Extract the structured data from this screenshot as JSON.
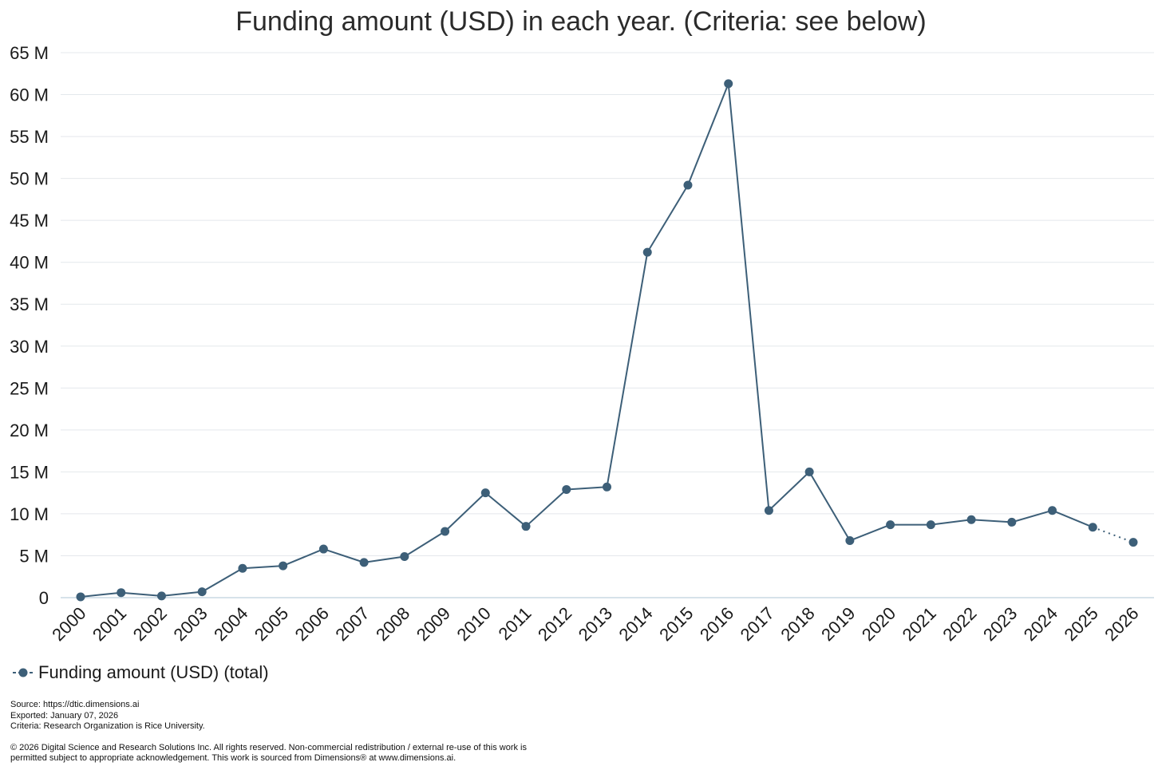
{
  "chart_data": {
    "type": "line",
    "title": "Funding amount (USD) in each year. (Criteria: see below)",
    "xlabel": "",
    "ylabel": "",
    "categories": [
      "2000",
      "2001",
      "2002",
      "2003",
      "2004",
      "2005",
      "2006",
      "2007",
      "2008",
      "2009",
      "2010",
      "2011",
      "2012",
      "2013",
      "2014",
      "2015",
      "2016",
      "2017",
      "2018",
      "2019",
      "2020",
      "2021",
      "2022",
      "2023",
      "2024",
      "2025",
      "2026"
    ],
    "series": [
      {
        "name": "Funding amount (USD) (total)",
        "values": [
          0.1,
          0.6,
          0.2,
          0.7,
          3.5,
          3.8,
          5.8,
          4.2,
          4.9,
          7.9,
          12.5,
          8.5,
          12.9,
          13.2,
          41.2,
          49.2,
          61.3,
          10.4,
          15.0,
          6.8,
          8.7,
          8.7,
          9.3,
          9.0,
          10.4,
          8.4,
          6.6
        ]
      }
    ],
    "y_unit": "M",
    "ylim": [
      0,
      65
    ],
    "yticks": [
      "0",
      "5 M",
      "10 M",
      "15 M",
      "20 M",
      "25 M",
      "30 M",
      "35 M",
      "40 M",
      "45 M",
      "50 M",
      "55 M",
      "60 M",
      "65 M"
    ],
    "yticks_values": [
      0,
      5,
      10,
      15,
      20,
      25,
      30,
      35,
      40,
      45,
      50,
      55,
      60,
      65
    ],
    "grid": true,
    "legend_position": "bottom-left",
    "last_segment_dotted": true,
    "color": "#3d5f78"
  },
  "footer": {
    "source": "Source: https://dtic.dimensions.ai",
    "exported": "Exported: January 07, 2026",
    "criteria": "Criteria: Research Organization is Rice University.",
    "copyright_line1": "© 2026 Digital Science and Research Solutions Inc. All rights reserved. Non-commercial redistribution / external re-use of this work is",
    "copyright_line2": "permitted subject to appropriate acknowledgement. This work is sourced from Dimensions® at www.dimensions.ai."
  }
}
